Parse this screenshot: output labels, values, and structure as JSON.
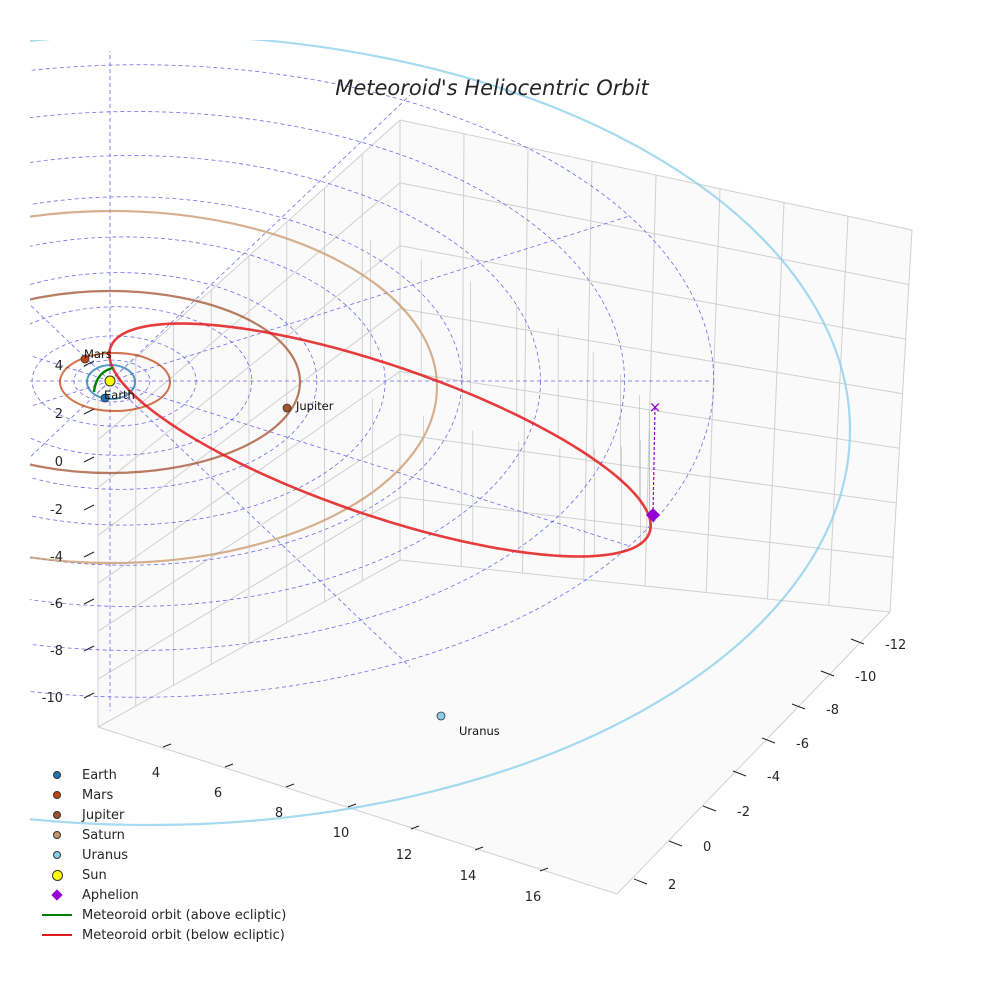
{
  "chart_data": {
    "type": "scatter",
    "projection": "3d",
    "title": "Meteoroid's Heliocentric Orbit",
    "x_ticks": [
      "4",
      "6",
      "8",
      "10",
      "12",
      "14",
      "16"
    ],
    "y_ticks": [
      "-12",
      "-10",
      "-8",
      "-6",
      "-4",
      "-2",
      "0",
      "2"
    ],
    "z_ticks": [
      "4",
      "2",
      "0",
      "-2",
      "-4",
      "-6",
      "-8",
      "-10"
    ],
    "planets": [
      {
        "name": "Earth",
        "label": "Earth",
        "color": "#1f77b4",
        "orbit_radius_au": 1.0
      },
      {
        "name": "Mars",
        "label": "Mars",
        "color": "#c1440e",
        "orbit_radius_au": 1.52
      },
      {
        "name": "Jupiter",
        "label": "Jupiter",
        "color": "#a0522d",
        "orbit_radius_au": 5.2
      },
      {
        "name": "Saturn",
        "label": "",
        "color": "#c8956a",
        "orbit_radius_au": 9.58
      },
      {
        "name": "Uranus",
        "label": "Uranus",
        "color": "#87ceeb",
        "orbit_radius_au": 19.2
      }
    ],
    "sun": {
      "name": "Sun",
      "color": "#ffff00"
    },
    "aphelion": {
      "name": "Aphelion",
      "color": "#9400d3"
    },
    "meteoroid_orbit": [
      {
        "name": "Meteoroid orbit (above ecliptic)",
        "color": "#008000"
      },
      {
        "name": "Meteoroid orbit (below ecliptic)",
        "color": "#e31a1c"
      }
    ],
    "legend": [
      {
        "label": "Earth",
        "kind": "dot",
        "color": "#1f77b4"
      },
      {
        "label": "Mars",
        "kind": "dot",
        "color": "#c1440e"
      },
      {
        "label": "Jupiter",
        "kind": "dot",
        "color": "#a0522d"
      },
      {
        "label": "Saturn",
        "kind": "dot",
        "color": "#c8956a"
      },
      {
        "label": "Uranus",
        "kind": "dot",
        "color": "#87ceeb"
      },
      {
        "label": "Sun",
        "kind": "sun",
        "color": "#ffff00"
      },
      {
        "label": "Aphelion",
        "kind": "diamond",
        "color": "#9400d3"
      },
      {
        "label": "Meteoroid orbit (above ecliptic)",
        "kind": "line",
        "color": "#008000"
      },
      {
        "label": "Meteoroid orbit (below ecliptic)",
        "kind": "line",
        "color": "#e31a1c"
      }
    ]
  }
}
